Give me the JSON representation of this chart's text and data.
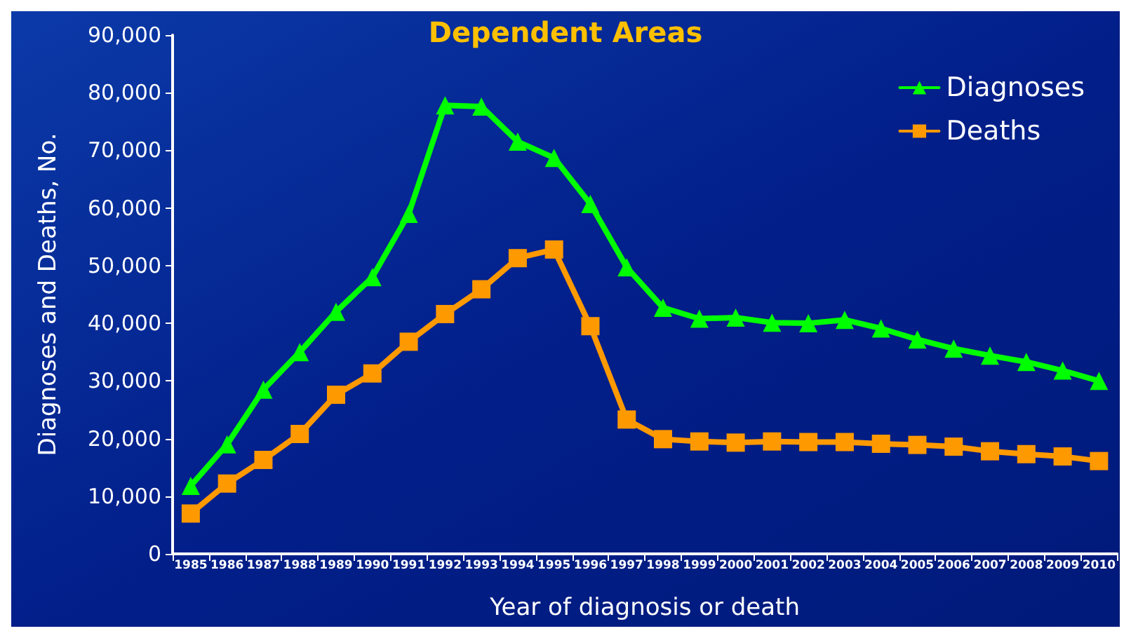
{
  "chart_data": {
    "type": "line",
    "title": "Dependent Areas",
    "xlabel": "Year of diagnosis or death",
    "ylabel": "Diagnoses and Deaths, No.",
    "categories": [
      "1985",
      "1986",
      "1987",
      "1988",
      "1989",
      "1990",
      "1991",
      "1992",
      "1993",
      "1994",
      "1995",
      "1996",
      "1997",
      "1998",
      "1999",
      "2000",
      "2001",
      "2002",
      "2003",
      "2004",
      "2005",
      "2006",
      "2007",
      "2008",
      "2009",
      "2010"
    ],
    "series": [
      {
        "name": "Diagnoses",
        "color": "#00ff00",
        "marker": "triangle",
        "values": [
          11800,
          19000,
          28500,
          35000,
          42000,
          48000,
          59000,
          77800,
          77600,
          71500,
          68700,
          60700,
          49700,
          42700,
          40800,
          41000,
          40100,
          40000,
          40600,
          39100,
          37200,
          35600,
          34400,
          33300,
          31800,
          30000
        ]
      },
      {
        "name": "Deaths",
        "color": "#ff9900",
        "marker": "square",
        "values": [
          7000,
          12200,
          16300,
          20800,
          27600,
          31300,
          36800,
          41600,
          45900,
          51300,
          52800,
          39500,
          23300,
          19900,
          19500,
          19300,
          19500,
          19400,
          19400,
          19100,
          18900,
          18600,
          17800,
          17300,
          16900,
          16100
        ]
      }
    ],
    "ylim": [
      0,
      90000
    ],
    "yticks": [
      0,
      {
        "value": 10000,
        "label": "10,000"
      },
      {
        "value": 20000,
        "label": "20,000"
      },
      {
        "value": 30000,
        "label": "30,000"
      },
      {
        "value": 40000,
        "label": "40,000"
      },
      {
        "value": 50000,
        "label": "50,000"
      },
      {
        "value": 60000,
        "label": "60,000"
      },
      {
        "value": 70000,
        "label": "70,000"
      },
      {
        "value": 80000,
        "label": "80,000"
      },
      {
        "value": 90000,
        "label": "90,000"
      }
    ],
    "grid": false,
    "legend": "top right",
    "line_style": "solid"
  }
}
